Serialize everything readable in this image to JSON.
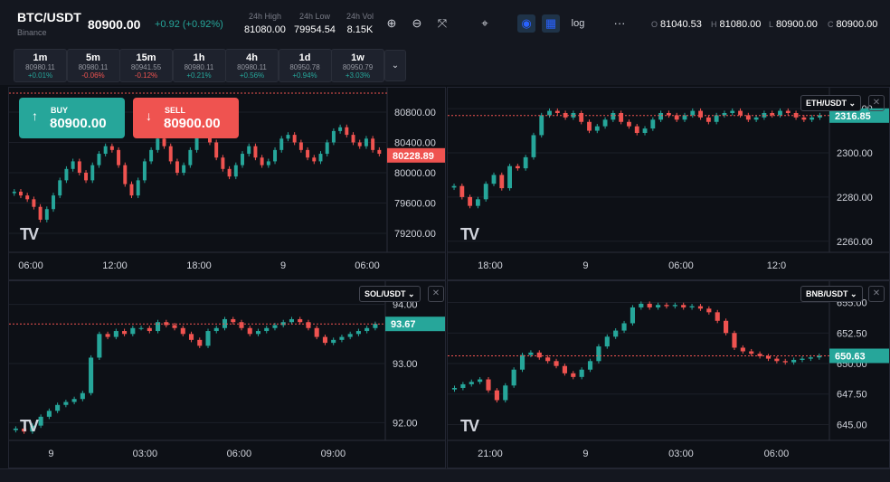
{
  "header": {
    "symbol": "BTC/USDT",
    "exchange": "Binance",
    "price": "80900.00",
    "change": "+0.92 (+0.92%)",
    "stats": [
      {
        "label": "24h High",
        "value": "81080.00"
      },
      {
        "label": "24h Low",
        "value": "79954.54"
      },
      {
        "label": "24h Vol",
        "value": "8.15K"
      }
    ],
    "toolbar": {
      "zoom_in": "zoom-in-icon",
      "zoom_out": "zoom-out-icon",
      "fit": "fit-icon",
      "crosshair": "crosshair-icon",
      "eye": "eye-icon",
      "grid": "grid-icon",
      "log_label": "log",
      "more_label": "···"
    },
    "ohlc": [
      {
        "key": "O",
        "value": "81040.53"
      },
      {
        "key": "H",
        "value": "81080.00"
      },
      {
        "key": "L",
        "value": "80900.00"
      },
      {
        "key": "C",
        "value": "80900.00"
      }
    ]
  },
  "timeframes": [
    {
      "label": "1m",
      "price": "80980.11",
      "change": "+0.01%",
      "dir": "pos"
    },
    {
      "label": "5m",
      "price": "80980.11",
      "change": "-0.06%",
      "dir": "neg"
    },
    {
      "label": "15m",
      "price": "80941.55",
      "change": "-0.12%",
      "dir": "neg"
    },
    {
      "label": "1h",
      "price": "80980.11",
      "change": "+0.21%",
      "dir": "pos"
    },
    {
      "label": "4h",
      "price": "80980.11",
      "change": "+0.56%",
      "dir": "pos"
    },
    {
      "label": "1d",
      "price": "80950.78",
      "change": "+0.94%",
      "dir": "pos"
    },
    {
      "label": "1w",
      "price": "80950.79",
      "change": "+3.03%",
      "dir": "pos"
    }
  ],
  "trade": {
    "buy_label": "BUY",
    "buy_price": "80900.00",
    "sell_label": "SELL",
    "sell_price": "80900.00"
  },
  "colors": {
    "up": "#26a69a",
    "down": "#ef5350",
    "grid": "#1c1f28",
    "axis_text": "#d1d4dc"
  },
  "chart_data": [
    {
      "type": "candlestick",
      "pair": "BTC/USDT",
      "yticks": [
        80800,
        80400,
        80000,
        79600,
        79200
      ],
      "ylim": [
        78950,
        81050
      ],
      "xticks": [
        "06:00",
        "12:00",
        "18:00",
        "9",
        "06:00"
      ],
      "last_price": "80228.89",
      "last_dir": "down",
      "closes": [
        79750,
        79700,
        79650,
        79550,
        79380,
        79520,
        79700,
        79900,
        80050,
        80150,
        80000,
        79900,
        80100,
        80250,
        80350,
        80300,
        80100,
        79850,
        79700,
        79900,
        80150,
        80300,
        80450,
        80350,
        80150,
        80000,
        80100,
        80300,
        80500,
        80600,
        80400,
        80200,
        80050,
        79950,
        80100,
        80250,
        80350,
        80200,
        80100,
        80150,
        80300,
        80450,
        80500,
        80400,
        80300,
        80200,
        80150,
        80250,
        80400,
        80550,
        80600,
        80500,
        80400,
        80350,
        80450,
        80300,
        80250
      ]
    },
    {
      "type": "candlestick",
      "pair": "ETH/USDT",
      "yticks": [
        2320,
        2300,
        2280,
        2260
      ],
      "ylim": [
        2255,
        2327
      ],
      "xticks": [
        "18:00",
        "9",
        "06:00",
        "12:0"
      ],
      "last_price": "2316.85",
      "last_dir": "up",
      "closes": [
        2285,
        2280,
        2276,
        2279,
        2286,
        2290,
        2284,
        2294,
        2293,
        2298,
        2308,
        2317,
        2319,
        2318,
        2316,
        2318,
        2314,
        2310,
        2312,
        2315,
        2318,
        2314,
        2312,
        2309,
        2311,
        2315,
        2318,
        2317,
        2315,
        2317,
        2319,
        2316,
        2314,
        2317,
        2318,
        2319,
        2317,
        2315,
        2316,
        2318,
        2317,
        2319,
        2318,
        2316,
        2315,
        2316,
        2317
      ]
    },
    {
      "type": "candlestick",
      "pair": "SOL/USDT",
      "yticks": [
        94.0,
        93.0,
        92.0
      ],
      "ylim": [
        91.7,
        94.3
      ],
      "xticks": [
        "9",
        "03:00",
        "06:00",
        "09:00"
      ],
      "last_price": "93.67",
      "last_dir": "up",
      "closes": [
        91.9,
        91.85,
        91.95,
        92.1,
        92.2,
        92.3,
        92.35,
        92.4,
        92.5,
        93.1,
        93.5,
        93.45,
        93.55,
        93.5,
        93.6,
        93.6,
        93.55,
        93.7,
        93.65,
        93.6,
        93.5,
        93.4,
        93.3,
        93.55,
        93.6,
        93.75,
        93.7,
        93.6,
        93.5,
        93.55,
        93.6,
        93.65,
        93.7,
        93.75,
        93.7,
        93.6,
        93.45,
        93.35,
        93.4,
        93.45,
        93.5,
        93.55,
        93.6,
        93.67
      ]
    },
    {
      "type": "candlestick",
      "pair": "BNB/USDT",
      "yticks": [
        655.0,
        652.5,
        650.0,
        647.5,
        645.0
      ],
      "ylim": [
        643.7,
        656.3
      ],
      "xticks": [
        "21:00",
        "9",
        "03:00",
        "06:00"
      ],
      "last_price": "650.63",
      "last_dir": "up",
      "closes": [
        648.0,
        648.3,
        648.5,
        648.7,
        647.8,
        647.0,
        648.2,
        649.5,
        650.7,
        650.9,
        650.5,
        650.2,
        649.8,
        649.2,
        648.9,
        649.5,
        650.2,
        651.4,
        652.2,
        652.7,
        653.3,
        654.6,
        654.9,
        654.6,
        654.8,
        654.7,
        654.8,
        654.6,
        654.7,
        654.5,
        654.2,
        653.5,
        652.5,
        651.3,
        651.0,
        650.8,
        650.6,
        650.4,
        650.2,
        650.1,
        650.3,
        650.4,
        650.5,
        650.63
      ]
    }
  ]
}
